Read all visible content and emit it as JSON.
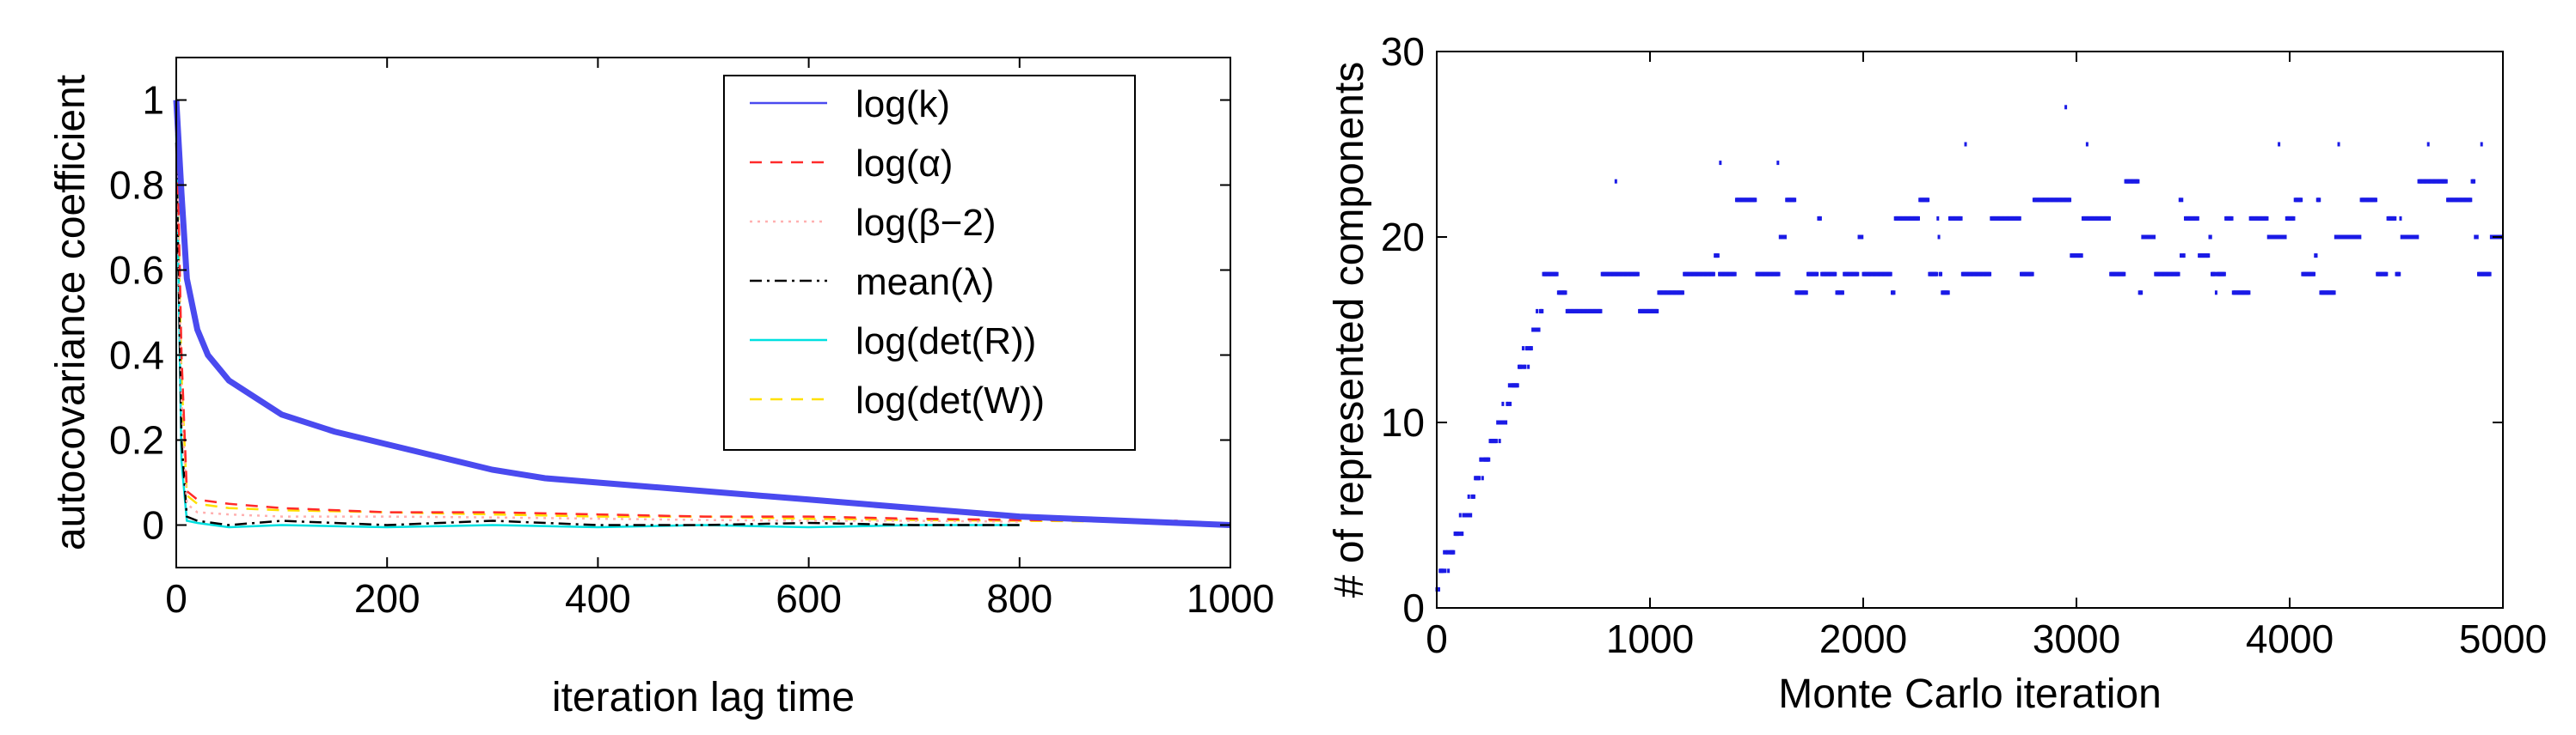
{
  "chart_data": [
    {
      "type": "line",
      "xlabel": "iteration lag time",
      "ylabel": "autocovariance coefficient",
      "xlim": [
        0,
        1000
      ],
      "ylim": [
        -0.1,
        1.1
      ],
      "xticks": [
        0,
        200,
        400,
        600,
        800,
        1000
      ],
      "yticks": [
        0,
        0.2,
        0.4,
        0.6,
        0.8,
        1
      ],
      "ytick_labels": [
        "0",
        "0.2",
        "0.4",
        "0.6",
        "0.8",
        "1"
      ],
      "legend_position": "top-right",
      "series": [
        {
          "name": "log(k)",
          "color": "#4a4aef",
          "dash": "solid",
          "x": [
            0,
            5,
            10,
            20,
            30,
            50,
            75,
            100,
            150,
            200,
            250,
            300,
            350,
            400,
            450,
            500,
            550,
            600,
            650,
            700,
            750,
            800,
            850,
            900,
            950,
            1000
          ],
          "y": [
            1.0,
            0.78,
            0.58,
            0.46,
            0.4,
            0.34,
            0.3,
            0.26,
            0.22,
            0.19,
            0.16,
            0.13,
            0.11,
            0.1,
            0.09,
            0.08,
            0.07,
            0.06,
            0.05,
            0.04,
            0.03,
            0.02,
            0.015,
            0.01,
            0.005,
            0.0
          ]
        },
        {
          "name": "log(α)",
          "color": "#ff2a2a",
          "dash": "dashed",
          "x": [
            0,
            5,
            10,
            20,
            50,
            100,
            200,
            300,
            400,
            500,
            600,
            700,
            800,
            900,
            950
          ],
          "y": [
            1.0,
            0.4,
            0.08,
            0.06,
            0.05,
            0.04,
            0.03,
            0.03,
            0.025,
            0.02,
            0.02,
            0.015,
            0.012,
            0.01,
            0.01
          ]
        },
        {
          "name": "log(β−2)",
          "color": "#ffb0b0",
          "dash": "dotted",
          "x": [
            0,
            5,
            10,
            20,
            50,
            100,
            200,
            300,
            400,
            500,
            600,
            700,
            800
          ],
          "y": [
            0.95,
            0.3,
            0.05,
            0.03,
            0.025,
            0.02,
            0.02,
            0.018,
            0.015,
            0.012,
            0.01,
            0.01,
            0.008
          ]
        },
        {
          "name": "mean(λ)",
          "color": "#000000",
          "dash": "dashdot",
          "x": [
            0,
            5,
            10,
            20,
            50,
            100,
            200,
            300,
            400,
            500,
            600,
            700,
            800
          ],
          "y": [
            0.9,
            0.2,
            0.02,
            0.01,
            0.0,
            0.01,
            0.0,
            0.01,
            0.0,
            0.0,
            0.005,
            0.0,
            0.0
          ]
        },
        {
          "name": "log(det(R))",
          "color": "#00e0e0",
          "dash": "solid",
          "x": [
            0,
            5,
            10,
            20,
            50,
            100,
            200,
            300,
            400,
            500,
            600,
            700,
            800
          ],
          "y": [
            0.92,
            0.15,
            0.01,
            0.005,
            -0.005,
            0.0,
            -0.005,
            0.0,
            -0.005,
            0.0,
            -0.005,
            0.0,
            0.0
          ]
        },
        {
          "name": "log(det(W))",
          "color": "#ffe000",
          "dash": "dashed",
          "x": [
            0,
            5,
            10,
            20,
            50,
            100,
            200,
            300,
            400,
            500,
            600,
            700,
            800,
            900
          ],
          "y": [
            0.94,
            0.35,
            0.07,
            0.05,
            0.04,
            0.035,
            0.03,
            0.025,
            0.02,
            0.02,
            0.015,
            0.012,
            0.01,
            0.008
          ]
        }
      ]
    },
    {
      "type": "scatter",
      "xlabel": "Monte Carlo iteration",
      "ylabel": "# of represented components",
      "xlim": [
        0,
        5000
      ],
      "ylim": [
        0,
        30
      ],
      "xticks": [
        0,
        1000,
        2000,
        3000,
        4000,
        5000
      ],
      "yticks": [
        0,
        10,
        20,
        30
      ],
      "color": "#1a1ae6",
      "phases": [
        {
          "x_start": 0,
          "x_end": 500,
          "y_start": 1,
          "y_end": 16
        },
        {
          "x_start": 500,
          "x_end": 1200,
          "ymin": 15,
          "ymax": 20
        },
        {
          "x_start": 1200,
          "x_end": 2000,
          "ymin": 17,
          "ymax": 22
        },
        {
          "x_start": 2000,
          "x_end": 2900,
          "ymin": 16,
          "ymax": 22
        },
        {
          "x_start": 2900,
          "x_end": 5000,
          "ymin": 17,
          "ymax": 23
        }
      ],
      "outliers": [
        {
          "x": 840,
          "y": 23
        },
        {
          "x": 1330,
          "y": 24
        },
        {
          "x": 1600,
          "y": 24
        },
        {
          "x": 2480,
          "y": 25
        },
        {
          "x": 2950,
          "y": 27
        },
        {
          "x": 3050,
          "y": 25
        },
        {
          "x": 3950,
          "y": 25
        },
        {
          "x": 4230,
          "y": 25
        },
        {
          "x": 4650,
          "y": 25
        },
        {
          "x": 4900,
          "y": 25
        }
      ]
    }
  ]
}
